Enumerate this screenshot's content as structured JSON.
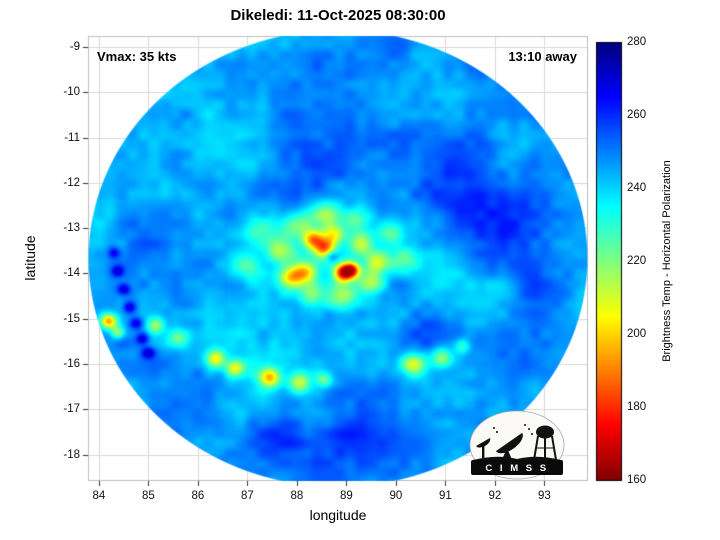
{
  "chart": {
    "title": "Dikeledi: 11-Oct-2025 08:30:00",
    "vmax_label": "Vmax: 35 kts",
    "away_label": "13:10 away",
    "xlabel": "longitude",
    "ylabel": "latitude",
    "colorbar_label": "Brightness Temp - Horizontal Polarization"
  },
  "logo": {
    "letters": "C I M S S"
  },
  "chart_data": {
    "type": "heatmap",
    "title": "Dikeledi: 11-Oct-2025 08:30:00",
    "annotations": [
      {
        "text": "Vmax: 35 kts",
        "pos": "top-left"
      },
      {
        "text": "13:10 away",
        "pos": "top-right"
      }
    ],
    "storm": {
      "name": "Dikeledi",
      "vmax_kts": 35,
      "time": "11-Oct-2025 08:30:00",
      "center_lon": 88.8,
      "center_lat": -13.7
    },
    "xlabel": "longitude",
    "ylabel": "latitude",
    "xlim": [
      83.78,
      93.88
    ],
    "ylim": [
      -18.58,
      -8.76
    ],
    "xticks": [
      84,
      85,
      86,
      87,
      88,
      89,
      90,
      91,
      92,
      93
    ],
    "yticks": [
      -9,
      -10,
      -11,
      -12,
      -13,
      -14,
      -15,
      -16,
      -17,
      -18
    ],
    "grid": true,
    "colorbar": {
      "label": "Brightness Temp - Horizontal Polarization",
      "min": 160,
      "max": 280,
      "ticks": [
        160,
        180,
        200,
        220,
        240,
        260,
        280
      ],
      "colormap": "jet_reversed"
    },
    "swath": {
      "center": [
        88.83,
        -13.67
      ],
      "radius_deg": 5.05,
      "base_temp_K": 247
    },
    "features": {
      "columns": [
        "lon",
        "lat",
        "sigma_deg",
        "dT_K"
      ],
      "rows": [
        [
          88.8,
          -13.7,
          1.1,
          -8
        ],
        [
          88.55,
          -13.45,
          0.16,
          -52
        ],
        [
          88.95,
          -13.98,
          0.14,
          -68
        ],
        [
          89.12,
          -13.92,
          0.12,
          -50
        ],
        [
          88.15,
          -13.98,
          0.18,
          -45
        ],
        [
          88.33,
          -13.25,
          0.14,
          -42
        ],
        [
          88.75,
          -13.15,
          0.16,
          -35
        ],
        [
          89.3,
          -13.35,
          0.18,
          -33
        ],
        [
          89.62,
          -13.75,
          0.18,
          -36
        ],
        [
          89.5,
          -14.2,
          0.2,
          -30
        ],
        [
          88.9,
          -14.5,
          0.22,
          -28
        ],
        [
          88.3,
          -14.45,
          0.18,
          -28
        ],
        [
          87.85,
          -14.1,
          0.16,
          -33
        ],
        [
          87.7,
          -13.5,
          0.2,
          -28
        ],
        [
          88.0,
          -12.95,
          0.22,
          -26
        ],
        [
          88.6,
          -12.72,
          0.22,
          -28
        ],
        [
          89.2,
          -12.8,
          0.2,
          -24
        ],
        [
          89.9,
          -13.1,
          0.22,
          -20
        ],
        [
          90.15,
          -13.7,
          0.2,
          -18
        ],
        [
          87.3,
          -13.0,
          0.25,
          -16
        ],
        [
          87.0,
          -13.85,
          0.22,
          -16
        ],
        [
          88.7,
          -13.62,
          0.09,
          20
        ],
        [
          87.3,
          -16.1,
          0.7,
          -8
        ],
        [
          90.6,
          -15.9,
          0.6,
          -6
        ],
        [
          86.35,
          -15.9,
          0.14,
          -40
        ],
        [
          86.75,
          -16.1,
          0.13,
          -34
        ],
        [
          87.45,
          -16.3,
          0.15,
          -44
        ],
        [
          88.05,
          -16.42,
          0.16,
          -36
        ],
        [
          88.55,
          -16.35,
          0.12,
          -24
        ],
        [
          90.35,
          -16.0,
          0.18,
          -36
        ],
        [
          90.95,
          -15.85,
          0.15,
          -30
        ],
        [
          91.35,
          -15.6,
          0.12,
          -20
        ],
        [
          85.6,
          -15.45,
          0.15,
          -24
        ],
        [
          85.15,
          -15.15,
          0.13,
          -28
        ],
        [
          84.2,
          -15.05,
          0.12,
          -52
        ],
        [
          84.38,
          -15.3,
          0.1,
          -30
        ],
        [
          86.8,
          -11.0,
          0.8,
          -6
        ],
        [
          85.8,
          -12.3,
          0.6,
          -5
        ],
        [
          91.8,
          -14.6,
          0.5,
          -6
        ],
        [
          90.6,
          -15.35,
          0.45,
          13
        ],
        [
          92.2,
          -12.9,
          0.7,
          9
        ],
        [
          91.4,
          -11.6,
          0.5,
          9
        ],
        [
          88.2,
          -11.2,
          0.7,
          7
        ],
        [
          86.3,
          -12.0,
          0.5,
          6
        ],
        [
          89.3,
          -17.5,
          0.55,
          11
        ],
        [
          87.6,
          -17.6,
          0.5,
          8
        ],
        [
          92.9,
          -14.3,
          0.5,
          8
        ],
        [
          90.9,
          -12.35,
          0.35,
          10
        ],
        [
          91.6,
          -12.6,
          0.3,
          10
        ],
        [
          84.9,
          -13.2,
          0.4,
          8
        ],
        [
          84.3,
          -13.55,
          0.09,
          22
        ],
        [
          84.38,
          -13.95,
          0.09,
          24
        ],
        [
          84.5,
          -14.35,
          0.09,
          24
        ],
        [
          84.62,
          -14.75,
          0.09,
          24
        ],
        [
          84.75,
          -15.1,
          0.09,
          24
        ],
        [
          84.88,
          -15.45,
          0.09,
          24
        ],
        [
          85.0,
          -15.75,
          0.09,
          24
        ]
      ]
    }
  }
}
